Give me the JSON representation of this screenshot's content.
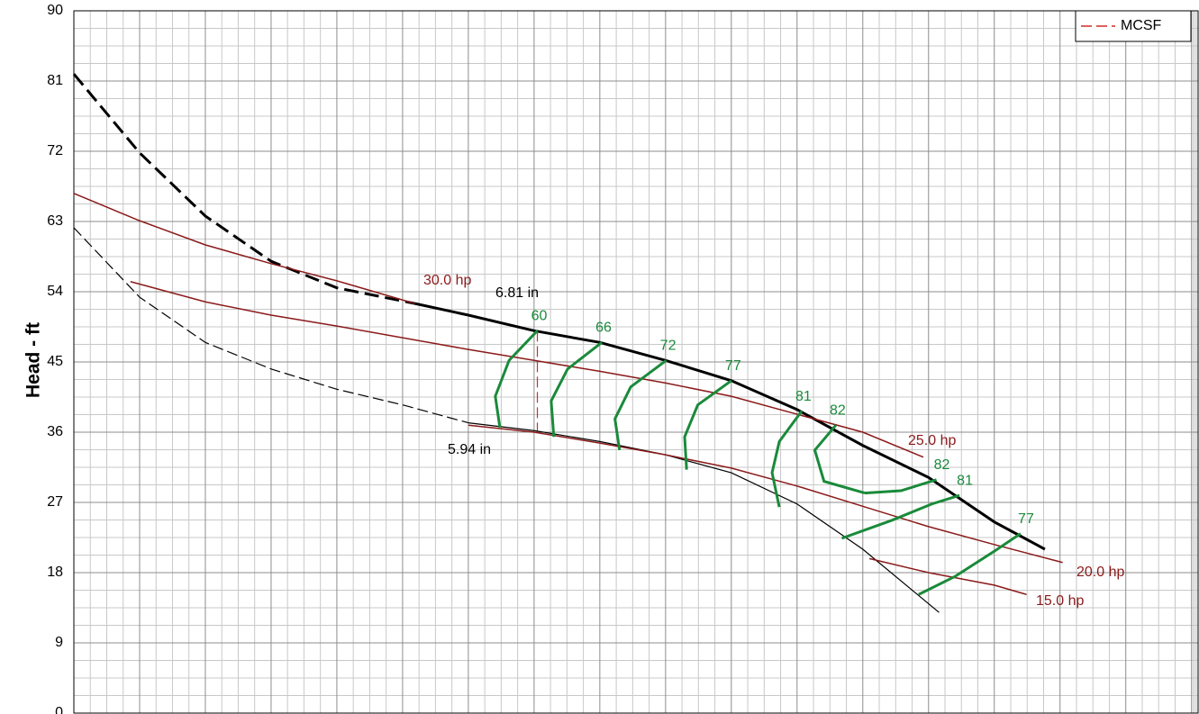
{
  "chart_data": {
    "type": "line",
    "y_label": "Head - ft",
    "ylim": [
      0,
      90
    ],
    "yticks": [
      0,
      9,
      18,
      27,
      36,
      45,
      54,
      63,
      72,
      81,
      90
    ],
    "xlim": [
      0,
      17.1
    ],
    "xticks": [
      0,
      1,
      2,
      3,
      4,
      5,
      6,
      7,
      8,
      9,
      10,
      11,
      12,
      13,
      14,
      15,
      16,
      17
    ],
    "minor_divisions": 4,
    "grid": true,
    "legend": "top-right",
    "series": [
      {
        "x": [
          0,
          1,
          2,
          3,
          4,
          5.18
        ],
        "values": [
          81.9,
          71.8,
          63.7,
          57.9,
          54.5,
          52.5
        ],
        "color": "#000000",
        "width": 3,
        "dash": true
      },
      {
        "label": "6.81 in",
        "x": [
          5.18,
          6,
          7,
          8,
          9,
          10,
          11,
          12,
          13,
          14,
          14.77
        ],
        "values": [
          52.5,
          51.0,
          49.0,
          47.5,
          45.2,
          42.6,
          38.9,
          34.3,
          30.2,
          24.5,
          21.0
        ],
        "color": "#000000",
        "width": 3,
        "dash": false
      },
      {
        "x": [
          0,
          1,
          2,
          3,
          4,
          5,
          6
        ],
        "values": [
          62.2,
          53.3,
          47.5,
          44.1,
          41.5,
          39.5,
          37.2
        ],
        "color": "#000000",
        "width": 1.2,
        "dash": true
      },
      {
        "label": "5.94 in",
        "x": [
          6,
          7,
          8,
          9,
          10,
          11,
          12,
          13.16
        ],
        "values": [
          37.2,
          36.2,
          34.8,
          33.1,
          30.8,
          26.8,
          21.0,
          12.9
        ],
        "color": "#000000",
        "width": 1.2,
        "dash": false
      },
      {
        "label": "30.0 hp",
        "x": [
          0,
          1,
          2,
          3,
          4,
          5.18
        ],
        "values": [
          66.6,
          63.1,
          60.0,
          57.6,
          55.4,
          52.5
        ],
        "color": "#8b1a1a",
        "width": 1.5,
        "dash": false
      },
      {
        "label": "25.0 hp",
        "x": [
          0.86,
          2,
          3,
          4,
          5,
          6,
          7,
          8,
          9,
          10,
          11,
          12,
          12.92
        ],
        "values": [
          55.3,
          52.7,
          51.0,
          49.6,
          48.1,
          46.6,
          45.2,
          43.8,
          42.3,
          40.6,
          38.3,
          36.0,
          32.8
        ],
        "color": "#8b1a1a",
        "width": 1.5,
        "dash": false
      },
      {
        "label": "20.0 hp",
        "x": [
          6,
          7,
          8,
          9,
          10,
          11,
          12,
          13,
          14,
          15.04
        ],
        "values": [
          36.9,
          36.0,
          34.6,
          33.1,
          31.4,
          29.1,
          26.5,
          23.9,
          21.6,
          19.3
        ],
        "color": "#8b1a1a",
        "width": 1.5,
        "dash": false
      },
      {
        "label": "15.0 hp",
        "x": [
          12.1,
          13,
          14,
          14.49
        ],
        "values": [
          19.8,
          18.0,
          16.4,
          15.2
        ],
        "color": "#8b1a1a",
        "width": 1.5,
        "dash": false
      },
      {
        "name": "MCSF",
        "x": [
          7.05,
          7.05
        ],
        "values": [
          49.0,
          36.2
        ],
        "color": "#d42a2a",
        "width": 1.2,
        "dash": true
      },
      {
        "efficiency": 60,
        "x": [
          7.05,
          6.62,
          6.41,
          6.48
        ],
        "values": [
          49.0,
          45.2,
          40.6,
          36.6
        ],
        "color": "#1a8a3a",
        "width": 3,
        "dash": false
      },
      {
        "efficiency": 66,
        "x": [
          8.03,
          7.51,
          7.26,
          7.3
        ],
        "values": [
          47.5,
          44.1,
          40.0,
          35.4
        ],
        "color": "#1a8a3a",
        "width": 3,
        "dash": false
      },
      {
        "efficiency": 72,
        "x": [
          9.01,
          8.47,
          8.23,
          8.3
        ],
        "values": [
          45.2,
          41.8,
          37.7,
          33.7
        ],
        "color": "#1a8a3a",
        "width": 3,
        "dash": false
      },
      {
        "efficiency": 77,
        "x": [
          10,
          9.49,
          9.29,
          9.32
        ],
        "values": [
          42.6,
          39.5,
          35.4,
          31.2
        ],
        "color": "#1a8a3a",
        "width": 3,
        "dash": false
      },
      {
        "efficiency": 81,
        "x": [
          11.07,
          10.73,
          10.62,
          10.73
        ],
        "values": [
          38.7,
          34.8,
          30.8,
          26.4
        ],
        "color": "#1a8a3a",
        "width": 3,
        "dash": false
      },
      {
        "efficiency": 82,
        "x": [
          11.59,
          11.27,
          11.41,
          12.03
        ],
        "values": [
          36.9,
          33.7,
          29.7,
          28.2
        ],
        "color": "#1a8a3a",
        "width": 3,
        "dash": false
      },
      {
        "efficiency": 82,
        "x": [
          12.03,
          12.58,
          13.12
        ],
        "values": [
          28.2,
          28.5,
          29.9
        ],
        "color": "#1a8a3a",
        "width": 3,
        "dash": false
      },
      {
        "efficiency": 81,
        "x": [
          11.68,
          12.44,
          13.05,
          13.47
        ],
        "values": [
          22.4,
          24.7,
          26.8,
          27.9
        ],
        "color": "#1a8a3a",
        "width": 3,
        "dash": false
      },
      {
        "efficiency": 77,
        "x": [
          12.85,
          13.4,
          14.01,
          14.4
        ],
        "values": [
          15.2,
          17.5,
          20.8,
          23.0
        ],
        "color": "#1a8a3a",
        "width": 3,
        "dash": false
      }
    ]
  }
}
